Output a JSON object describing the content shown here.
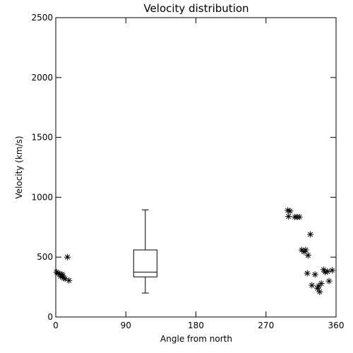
{
  "chart_data": {
    "type": "scatter",
    "title": "Velocity distribution",
    "xlabel": "Angle from north",
    "ylabel": "Velocity (km/s)",
    "xlim": [
      0,
      360
    ],
    "ylim": [
      0,
      2500
    ],
    "xticks": [
      0,
      90,
      180,
      270,
      360
    ],
    "yticks": [
      0,
      500,
      1000,
      1500,
      2000,
      2500
    ],
    "grid": false,
    "marker": "asterisk",
    "points": [
      {
        "x": 1,
        "y": 375
      },
      {
        "x": 3,
        "y": 365
      },
      {
        "x": 5,
        "y": 360
      },
      {
        "x": 6,
        "y": 340
      },
      {
        "x": 8,
        "y": 355
      },
      {
        "x": 9,
        "y": 345
      },
      {
        "x": 10,
        "y": 325
      },
      {
        "x": 12,
        "y": 320
      },
      {
        "x": 15,
        "y": 500
      },
      {
        "x": 17,
        "y": 305
      },
      {
        "x": 298,
        "y": 890
      },
      {
        "x": 299,
        "y": 840
      },
      {
        "x": 301,
        "y": 885
      },
      {
        "x": 307,
        "y": 835
      },
      {
        "x": 310,
        "y": 835
      },
      {
        "x": 313,
        "y": 835
      },
      {
        "x": 316,
        "y": 560
      },
      {
        "x": 319,
        "y": 545
      },
      {
        "x": 321,
        "y": 560
      },
      {
        "x": 323,
        "y": 365
      },
      {
        "x": 324,
        "y": 515
      },
      {
        "x": 327,
        "y": 690
      },
      {
        "x": 329,
        "y": 265
      },
      {
        "x": 333,
        "y": 355
      },
      {
        "x": 336,
        "y": 240
      },
      {
        "x": 338,
        "y": 260
      },
      {
        "x": 339,
        "y": 210
      },
      {
        "x": 341,
        "y": 280
      },
      {
        "x": 344,
        "y": 395
      },
      {
        "x": 346,
        "y": 375
      },
      {
        "x": 349,
        "y": 380
      },
      {
        "x": 351,
        "y": 300
      },
      {
        "x": 355,
        "y": 390
      }
    ],
    "boxplot": {
      "x_center": 115,
      "x_halfwidth": 15,
      "min": 200,
      "q1": 335,
      "median": 375,
      "q3": 560,
      "max": 895
    }
  }
}
